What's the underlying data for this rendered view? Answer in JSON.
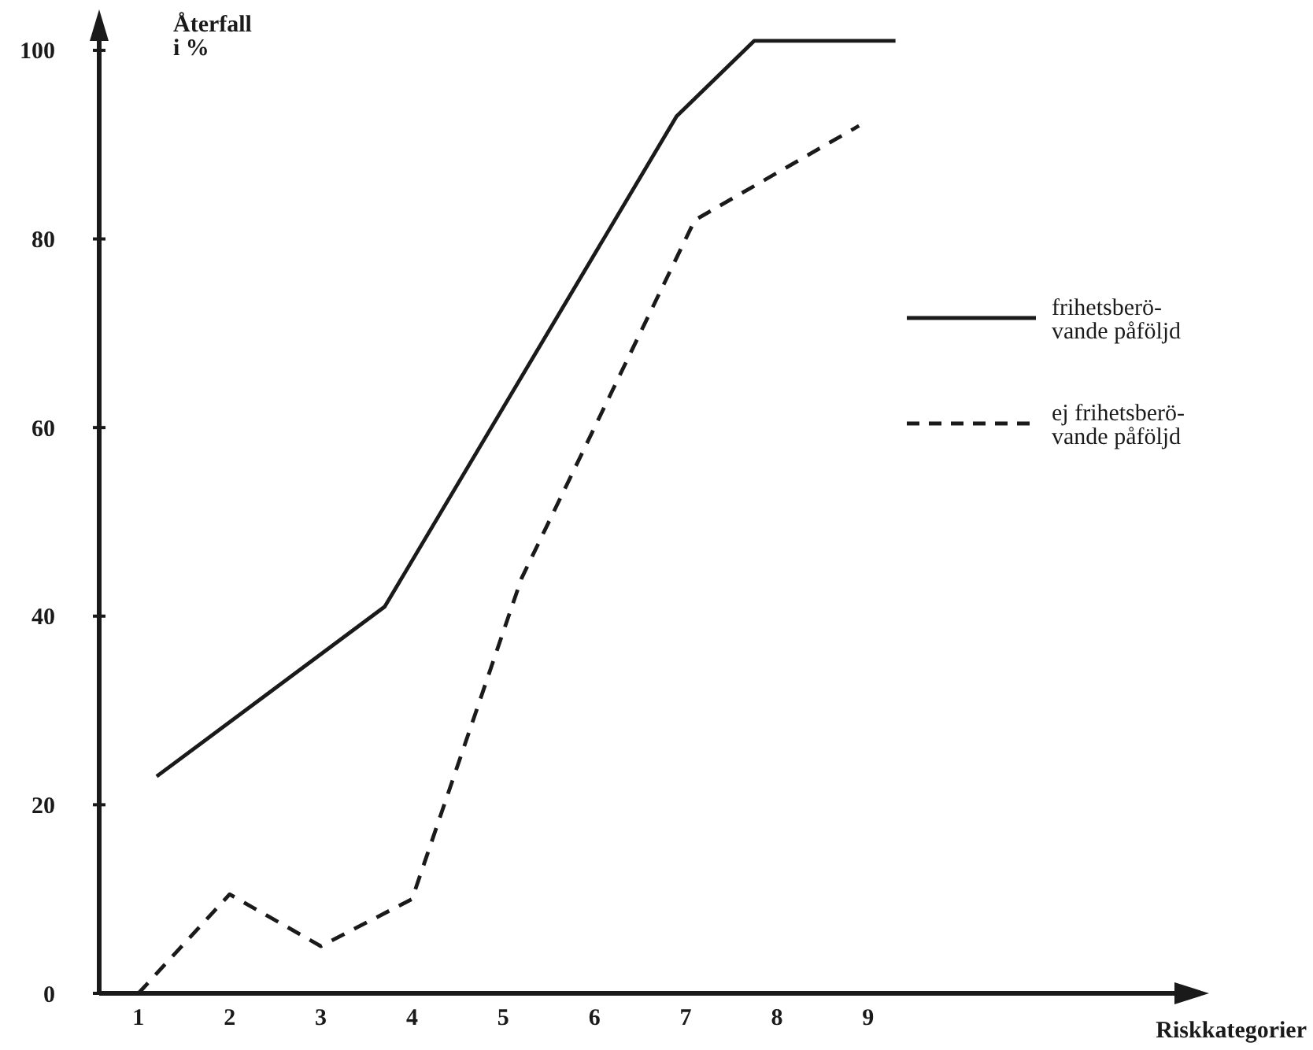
{
  "chart_data": {
    "type": "line",
    "xlabel": "Riskkategorier",
    "ylabel": "Återfall\ni %",
    "xlim": [
      0.57,
      12.6
    ],
    "ylim": [
      0,
      103
    ],
    "xticks": [
      1,
      2,
      3,
      4,
      5,
      6,
      7,
      8,
      9
    ],
    "yticks": [
      0,
      20,
      40,
      60,
      80,
      100
    ],
    "legend": "right",
    "grid": false,
    "marker": "none",
    "series": [
      {
        "name": "frihetsberö-\nvande påföljd",
        "color": "#1a1a1a",
        "line_style": "solid",
        "x": [
          1.2,
          3.7,
          6.9,
          7.75,
          9.3
        ],
        "values": [
          23,
          41,
          93,
          101,
          101
        ]
      },
      {
        "name": "ej frihetsberö-\nvande påföljd",
        "color": "#1a1a1a",
        "line_style": "dashed",
        "x": [
          1,
          2,
          3,
          4,
          5.2,
          7.1,
          8.9
        ],
        "values": [
          0,
          10.5,
          5,
          10,
          44,
          82,
          92
        ]
      }
    ]
  }
}
